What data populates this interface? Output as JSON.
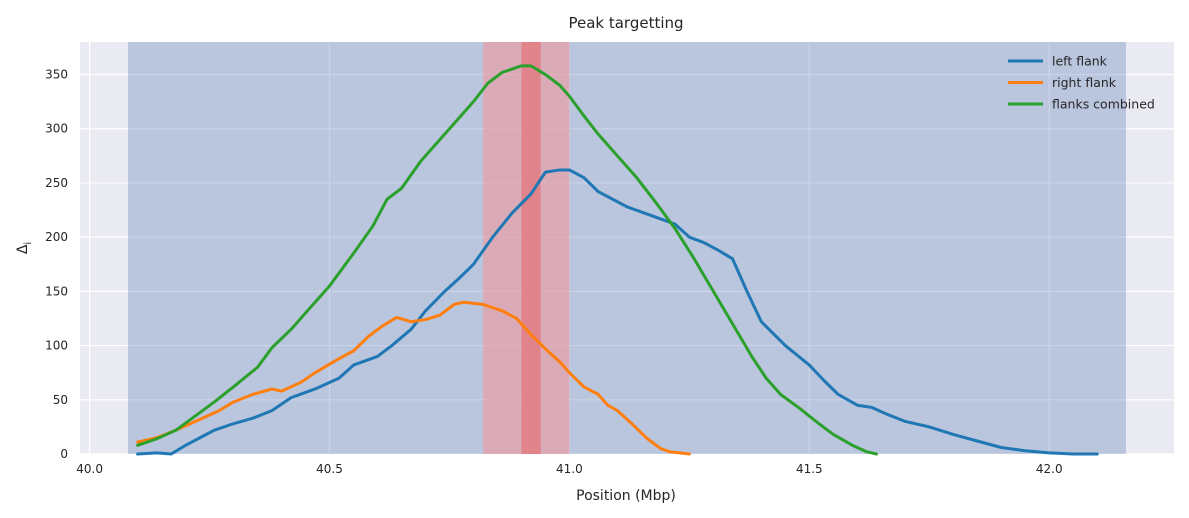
{
  "chart_data": {
    "type": "line",
    "title": "Peak targetting",
    "xlabel": "Position (Mbp)",
    "ylabel": "Δ",
    "ylabel_subscript": "i",
    "xlim": [
      39.98,
      42.26
    ],
    "ylim": [
      0,
      380
    ],
    "xticks": [
      40.0,
      40.5,
      41.0,
      41.5,
      42.0
    ],
    "xtick_labels": [
      "40.0",
      "40.5",
      "41.0",
      "41.5",
      "42.0"
    ],
    "yticks": [
      0,
      50,
      100,
      150,
      200,
      250,
      300,
      350
    ],
    "ytick_labels": [
      "0",
      "50",
      "100",
      "150",
      "200",
      "250",
      "300",
      "350"
    ],
    "grid": true,
    "legend_position": "top-right",
    "background_color": "#eaeaf2",
    "spans": [
      {
        "name": "search-region",
        "x0": 40.08,
        "x1": 42.16,
        "color": "#4c72b0",
        "alpha": 0.3
      },
      {
        "name": "peak-window",
        "x0": 40.82,
        "x1": 41.0,
        "color": "#e8a0a6",
        "alpha": 0.7
      },
      {
        "name": "peak-center",
        "x0": 40.9,
        "x1": 40.94,
        "color": "#e07b82",
        "alpha": 0.85
      }
    ],
    "series": [
      {
        "name": "left flank",
        "color": "#1f77b4",
        "x": [
          40.1,
          40.14,
          40.17,
          40.2,
          40.23,
          40.26,
          40.3,
          40.34,
          40.38,
          40.42,
          40.47,
          40.52,
          40.55,
          40.6,
          40.63,
          40.67,
          40.7,
          40.74,
          40.77,
          40.8,
          40.84,
          40.88,
          40.92,
          40.95,
          40.98,
          41.0,
          41.03,
          41.06,
          41.09,
          41.12,
          41.17,
          41.22,
          41.25,
          41.28,
          41.31,
          41.34,
          41.37,
          41.4,
          41.45,
          41.5,
          41.53,
          41.56,
          41.6,
          41.63,
          41.66,
          41.7,
          41.75,
          41.8,
          41.85,
          41.9,
          41.95,
          42.0,
          42.05,
          42.1
        ],
        "y": [
          0,
          1,
          0,
          8,
          15,
          22,
          28,
          33,
          40,
          52,
          60,
          70,
          82,
          90,
          100,
          115,
          132,
          150,
          162,
          175,
          200,
          222,
          240,
          260,
          262,
          262,
          255,
          242,
          235,
          228,
          220,
          212,
          200,
          195,
          188,
          180,
          150,
          122,
          100,
          82,
          68,
          55,
          45,
          43,
          37,
          30,
          25,
          18,
          12,
          6,
          3,
          1,
          0,
          0
        ]
      },
      {
        "name": "right flank",
        "color": "#ff7f0e",
        "x": [
          40.1,
          40.14,
          40.18,
          40.22,
          40.27,
          40.3,
          40.34,
          40.38,
          40.4,
          40.44,
          40.47,
          40.52,
          40.55,
          40.58,
          40.61,
          40.64,
          40.67,
          40.7,
          40.73,
          40.76,
          40.78,
          40.82,
          40.86,
          40.89,
          40.92,
          40.95,
          40.98,
          41.0,
          41.03,
          41.06,
          41.08,
          41.1,
          41.13,
          41.16,
          41.19,
          41.21,
          41.23,
          41.25
        ],
        "y": [
          11,
          15,
          22,
          30,
          40,
          48,
          55,
          60,
          58,
          66,
          75,
          88,
          95,
          108,
          118,
          126,
          122,
          124,
          128,
          138,
          140,
          138,
          132,
          125,
          110,
          97,
          85,
          75,
          62,
          55,
          45,
          40,
          28,
          15,
          5,
          2,
          1,
          0
        ]
      },
      {
        "name": "flanks combined",
        "color": "#2ca02c",
        "x": [
          40.1,
          40.14,
          40.18,
          40.22,
          40.26,
          40.3,
          40.35,
          40.38,
          40.42,
          40.45,
          40.5,
          40.55,
          40.59,
          40.62,
          40.65,
          40.69,
          40.72,
          40.76,
          40.8,
          40.83,
          40.86,
          40.9,
          40.92,
          40.95,
          40.98,
          41.0,
          41.03,
          41.06,
          41.1,
          41.14,
          41.18,
          41.22,
          41.26,
          41.3,
          41.34,
          41.38,
          41.41,
          41.44,
          41.48,
          41.52,
          41.55,
          41.59,
          41.62,
          41.64
        ],
        "y": [
          8,
          14,
          22,
          35,
          48,
          62,
          80,
          98,
          115,
          130,
          155,
          185,
          210,
          235,
          245,
          270,
          285,
          305,
          325,
          342,
          352,
          358,
          358,
          350,
          340,
          330,
          312,
          295,
          275,
          255,
          232,
          208,
          180,
          150,
          120,
          90,
          70,
          55,
          42,
          28,
          18,
          8,
          2,
          0
        ]
      }
    ]
  }
}
